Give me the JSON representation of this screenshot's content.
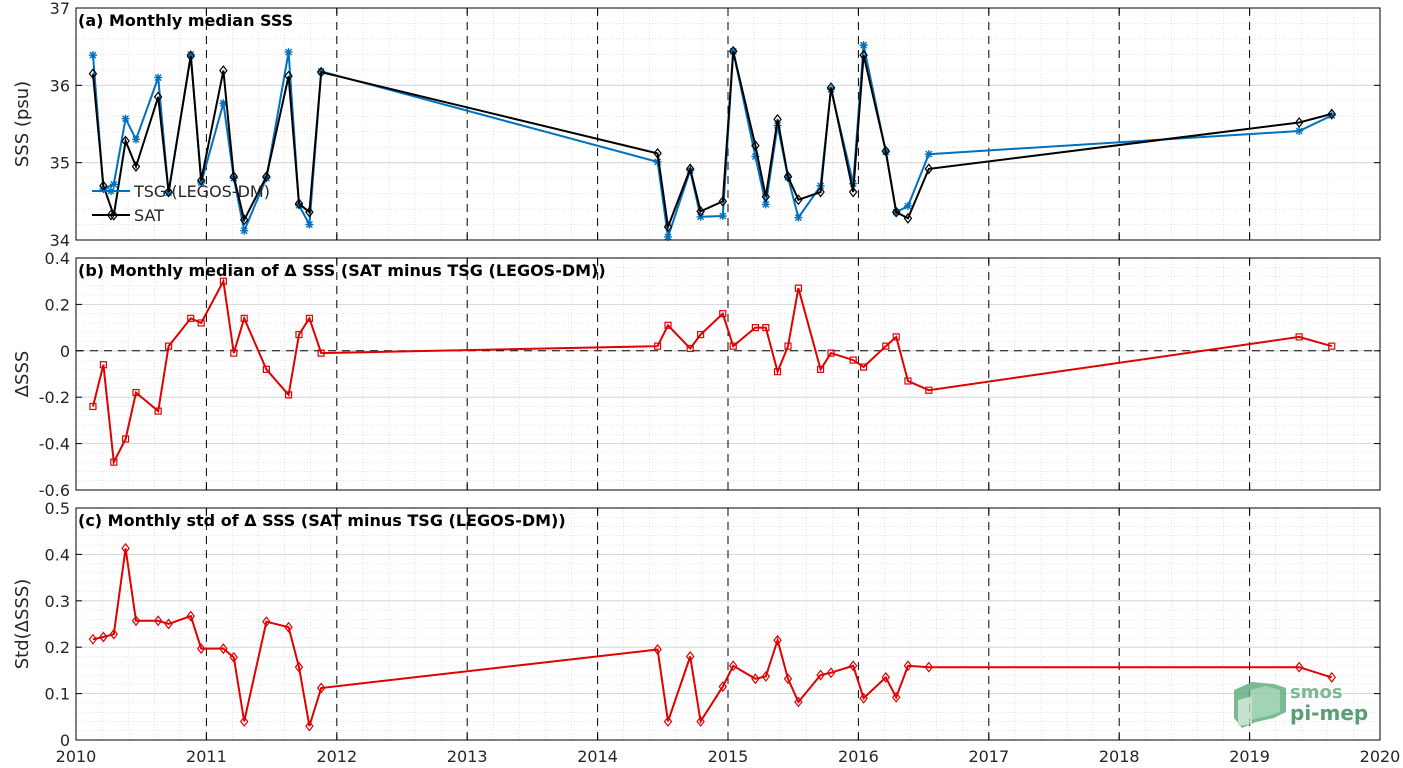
{
  "x_ticks": [
    "2010",
    "2011",
    "2012",
    "2013",
    "2014",
    "2015",
    "2016",
    "2017",
    "2018",
    "2019",
    "2020"
  ],
  "logo": {
    "line1": "smos",
    "line2": "pi-mep"
  },
  "colors": {
    "tsg": "#0072bd",
    "sat": "#000000",
    "delta": "#e00000"
  },
  "chart_data": [
    {
      "type": "line",
      "title": "(a) Monthly median SSS",
      "ylabel": "SSS (psu)",
      "xlim": [
        2010,
        2020
      ],
      "ylim": [
        34,
        37
      ],
      "yticks": [
        34,
        35,
        36,
        37
      ],
      "ytick_labels": [
        "34",
        "35",
        "36",
        "37"
      ],
      "grid": true,
      "legend": "bottom-left",
      "x": [
        2010.13,
        2010.21,
        2010.29,
        2010.38,
        2010.46,
        2010.63,
        2010.71,
        2010.88,
        2010.96,
        2011.13,
        2011.21,
        2011.29,
        2011.46,
        2011.63,
        2011.71,
        2011.79,
        2011.88,
        2014.46,
        2014.54,
        2014.71,
        2014.79,
        2014.96,
        2015.04,
        2015.21,
        2015.29,
        2015.38,
        2015.46,
        2015.54,
        2015.71,
        2015.79,
        2015.96,
        2016.04,
        2016.21,
        2016.29,
        2016.38,
        2016.54,
        2019.38,
        2019.63
      ],
      "series": [
        {
          "name": "TSG (LEGOS-DM)",
          "marker": "star",
          "values": [
            36.39,
            34.66,
            34.72,
            35.57,
            35.3,
            36.1,
            34.61,
            36.4,
            34.74,
            35.77,
            34.8,
            34.12,
            34.8,
            36.43,
            34.45,
            34.2,
            36.18,
            35.01,
            34.04,
            34.9,
            34.3,
            34.31,
            36.44,
            35.08,
            34.46,
            35.48,
            34.81,
            34.29,
            34.7,
            35.95,
            34.73,
            36.52,
            35.14,
            34.36,
            34.44,
            35.11,
            35.41,
            35.61
          ]
        },
        {
          "name": "SAT",
          "marker": "diamond",
          "values": [
            36.15,
            34.7,
            34.32,
            35.28,
            34.95,
            35.85,
            34.62,
            36.38,
            34.77,
            36.19,
            34.82,
            34.26,
            34.82,
            36.12,
            34.47,
            34.36,
            36.17,
            35.12,
            34.17,
            34.92,
            34.37,
            34.5,
            36.44,
            35.22,
            34.56,
            35.56,
            34.82,
            34.52,
            34.62,
            35.97,
            34.62,
            36.39,
            35.15,
            34.36,
            34.28,
            34.92,
            35.52,
            35.63
          ]
        }
      ]
    },
    {
      "type": "line",
      "title": "(b) Monthly median of Δ SSS (SAT minus TSG (LEGOS-DM))",
      "ylabel": "ΔSSS",
      "xlim": [
        2010,
        2020
      ],
      "ylim": [
        -0.6,
        0.4
      ],
      "yticks": [
        -0.6,
        -0.4,
        -0.2,
        0,
        0.2,
        0.4
      ],
      "ytick_labels": [
        "-0.6",
        "-0.4",
        "-0.2",
        "0",
        "0.2",
        "0.4"
      ],
      "grid": true,
      "reference_line": 0,
      "x": [
        2010.13,
        2010.21,
        2010.29,
        2010.38,
        2010.46,
        2010.63,
        2010.71,
        2010.88,
        2010.96,
        2011.13,
        2011.21,
        2011.29,
        2011.46,
        2011.63,
        2011.71,
        2011.79,
        2011.88,
        2014.46,
        2014.54,
        2014.71,
        2014.79,
        2014.96,
        2015.04,
        2015.21,
        2015.29,
        2015.38,
        2015.46,
        2015.54,
        2015.71,
        2015.79,
        2015.96,
        2016.04,
        2016.21,
        2016.29,
        2016.38,
        2016.54,
        2019.38,
        2019.63
      ],
      "series": [
        {
          "name": "",
          "marker": "square",
          "values": [
            -0.24,
            -0.06,
            -0.48,
            -0.38,
            -0.18,
            -0.26,
            0.02,
            0.14,
            0.12,
            0.3,
            -0.01,
            0.14,
            -0.08,
            -0.19,
            0.07,
            0.14,
            -0.01,
            0.02,
            0.11,
            0.01,
            0.07,
            0.16,
            0.02,
            0.1,
            0.1,
            -0.09,
            0.02,
            0.27,
            -0.08,
            -0.01,
            -0.04,
            -0.07,
            0.02,
            0.06,
            -0.13,
            -0.17,
            0.06,
            0.02
          ]
        }
      ]
    },
    {
      "type": "line",
      "title": "(c) Monthly std of Δ SSS (SAT minus TSG (LEGOS-DM))",
      "ylabel": "Std(ΔSSS)",
      "xlim": [
        2010,
        2020
      ],
      "ylim": [
        0,
        0.5
      ],
      "yticks": [
        0,
        0.1,
        0.2,
        0.3,
        0.4,
        0.5
      ],
      "ytick_labels": [
        "0",
        "0.1",
        "0.2",
        "0.3",
        "0.4",
        "0.5"
      ],
      "grid": true,
      "x": [
        2010.13,
        2010.21,
        2010.29,
        2010.38,
        2010.46,
        2010.63,
        2010.71,
        2010.88,
        2010.96,
        2011.13,
        2011.21,
        2011.29,
        2011.46,
        2011.63,
        2011.71,
        2011.79,
        2011.88,
        2014.46,
        2014.54,
        2014.71,
        2014.79,
        2014.96,
        2015.04,
        2015.21,
        2015.29,
        2015.38,
        2015.46,
        2015.54,
        2015.71,
        2015.79,
        2015.96,
        2016.04,
        2016.21,
        2016.29,
        2016.38,
        2016.54,
        2019.38,
        2019.63
      ],
      "series": [
        {
          "name": "",
          "marker": "diamond",
          "values": [
            0.217,
            0.222,
            0.228,
            0.413,
            0.257,
            0.257,
            0.25,
            0.267,
            0.197,
            0.197,
            0.178,
            0.04,
            0.255,
            0.243,
            0.157,
            0.03,
            0.112,
            0.195,
            0.04,
            0.18,
            0.04,
            0.115,
            0.16,
            0.132,
            0.137,
            0.215,
            0.132,
            0.082,
            0.14,
            0.145,
            0.16,
            0.09,
            0.135,
            0.092,
            0.16,
            0.157,
            0.157,
            0.135
          ]
        }
      ]
    }
  ]
}
